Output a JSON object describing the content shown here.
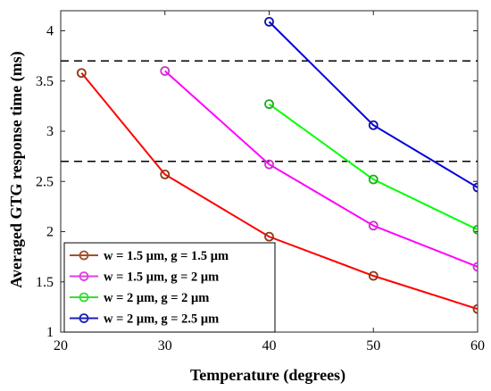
{
  "chart_data": {
    "type": "line",
    "xlabel": "Temperature (degrees)",
    "ylabel": "Averaged GTG response time (ms)",
    "xlim": [
      20,
      60
    ],
    "ylim": [
      1,
      4.2
    ],
    "xticks": [
      20,
      30,
      40,
      50,
      60
    ],
    "yticks": [
      1,
      1.5,
      2,
      2.5,
      3,
      3.5,
      4
    ],
    "xtick_labels": [
      "20",
      "30",
      "40",
      "50",
      "60"
    ],
    "ytick_labels": [
      "1",
      "1.5",
      "2",
      "2.5",
      "3",
      "3.5",
      "4"
    ],
    "grid": false,
    "legend_position": "bottom-left",
    "reference_lines": [
      {
        "y": 3.7,
        "style": "dashed",
        "color": "#000000"
      },
      {
        "y": 2.7,
        "style": "dashed",
        "color": "#000000"
      }
    ],
    "series": [
      {
        "name": "w = 1.5 μm, g = 1.5 μm",
        "color": "#ff0000",
        "marker_color": "#8b3a14",
        "legend_color": "#a0522d",
        "x": [
          22,
          30,
          40,
          50,
          60
        ],
        "y": [
          3.58,
          2.57,
          1.95,
          1.56,
          1.23
        ]
      },
      {
        "name": "w = 1.5 μm, g = 2 μm",
        "color": "#ff00ff",
        "marker_color": "#cc33cc",
        "legend_color": "#e040e0",
        "x": [
          30,
          40,
          50,
          60
        ],
        "y": [
          3.6,
          2.67,
          2.06,
          1.65
        ]
      },
      {
        "name": "w = 2 μm, g = 2 μm",
        "color": "#00ff00",
        "marker_color": "#22aa22",
        "legend_color": "#33dd33",
        "x": [
          40,
          50,
          60
        ],
        "y": [
          3.27,
          2.52,
          2.02
        ]
      },
      {
        "name": "w = 2 μm, g = 2.5 μm",
        "color": "#0000dd",
        "marker_color": "#1111aa",
        "legend_color": "#1f1fbb",
        "x": [
          40,
          50,
          60
        ],
        "y": [
          4.09,
          3.06,
          2.44
        ]
      }
    ]
  }
}
